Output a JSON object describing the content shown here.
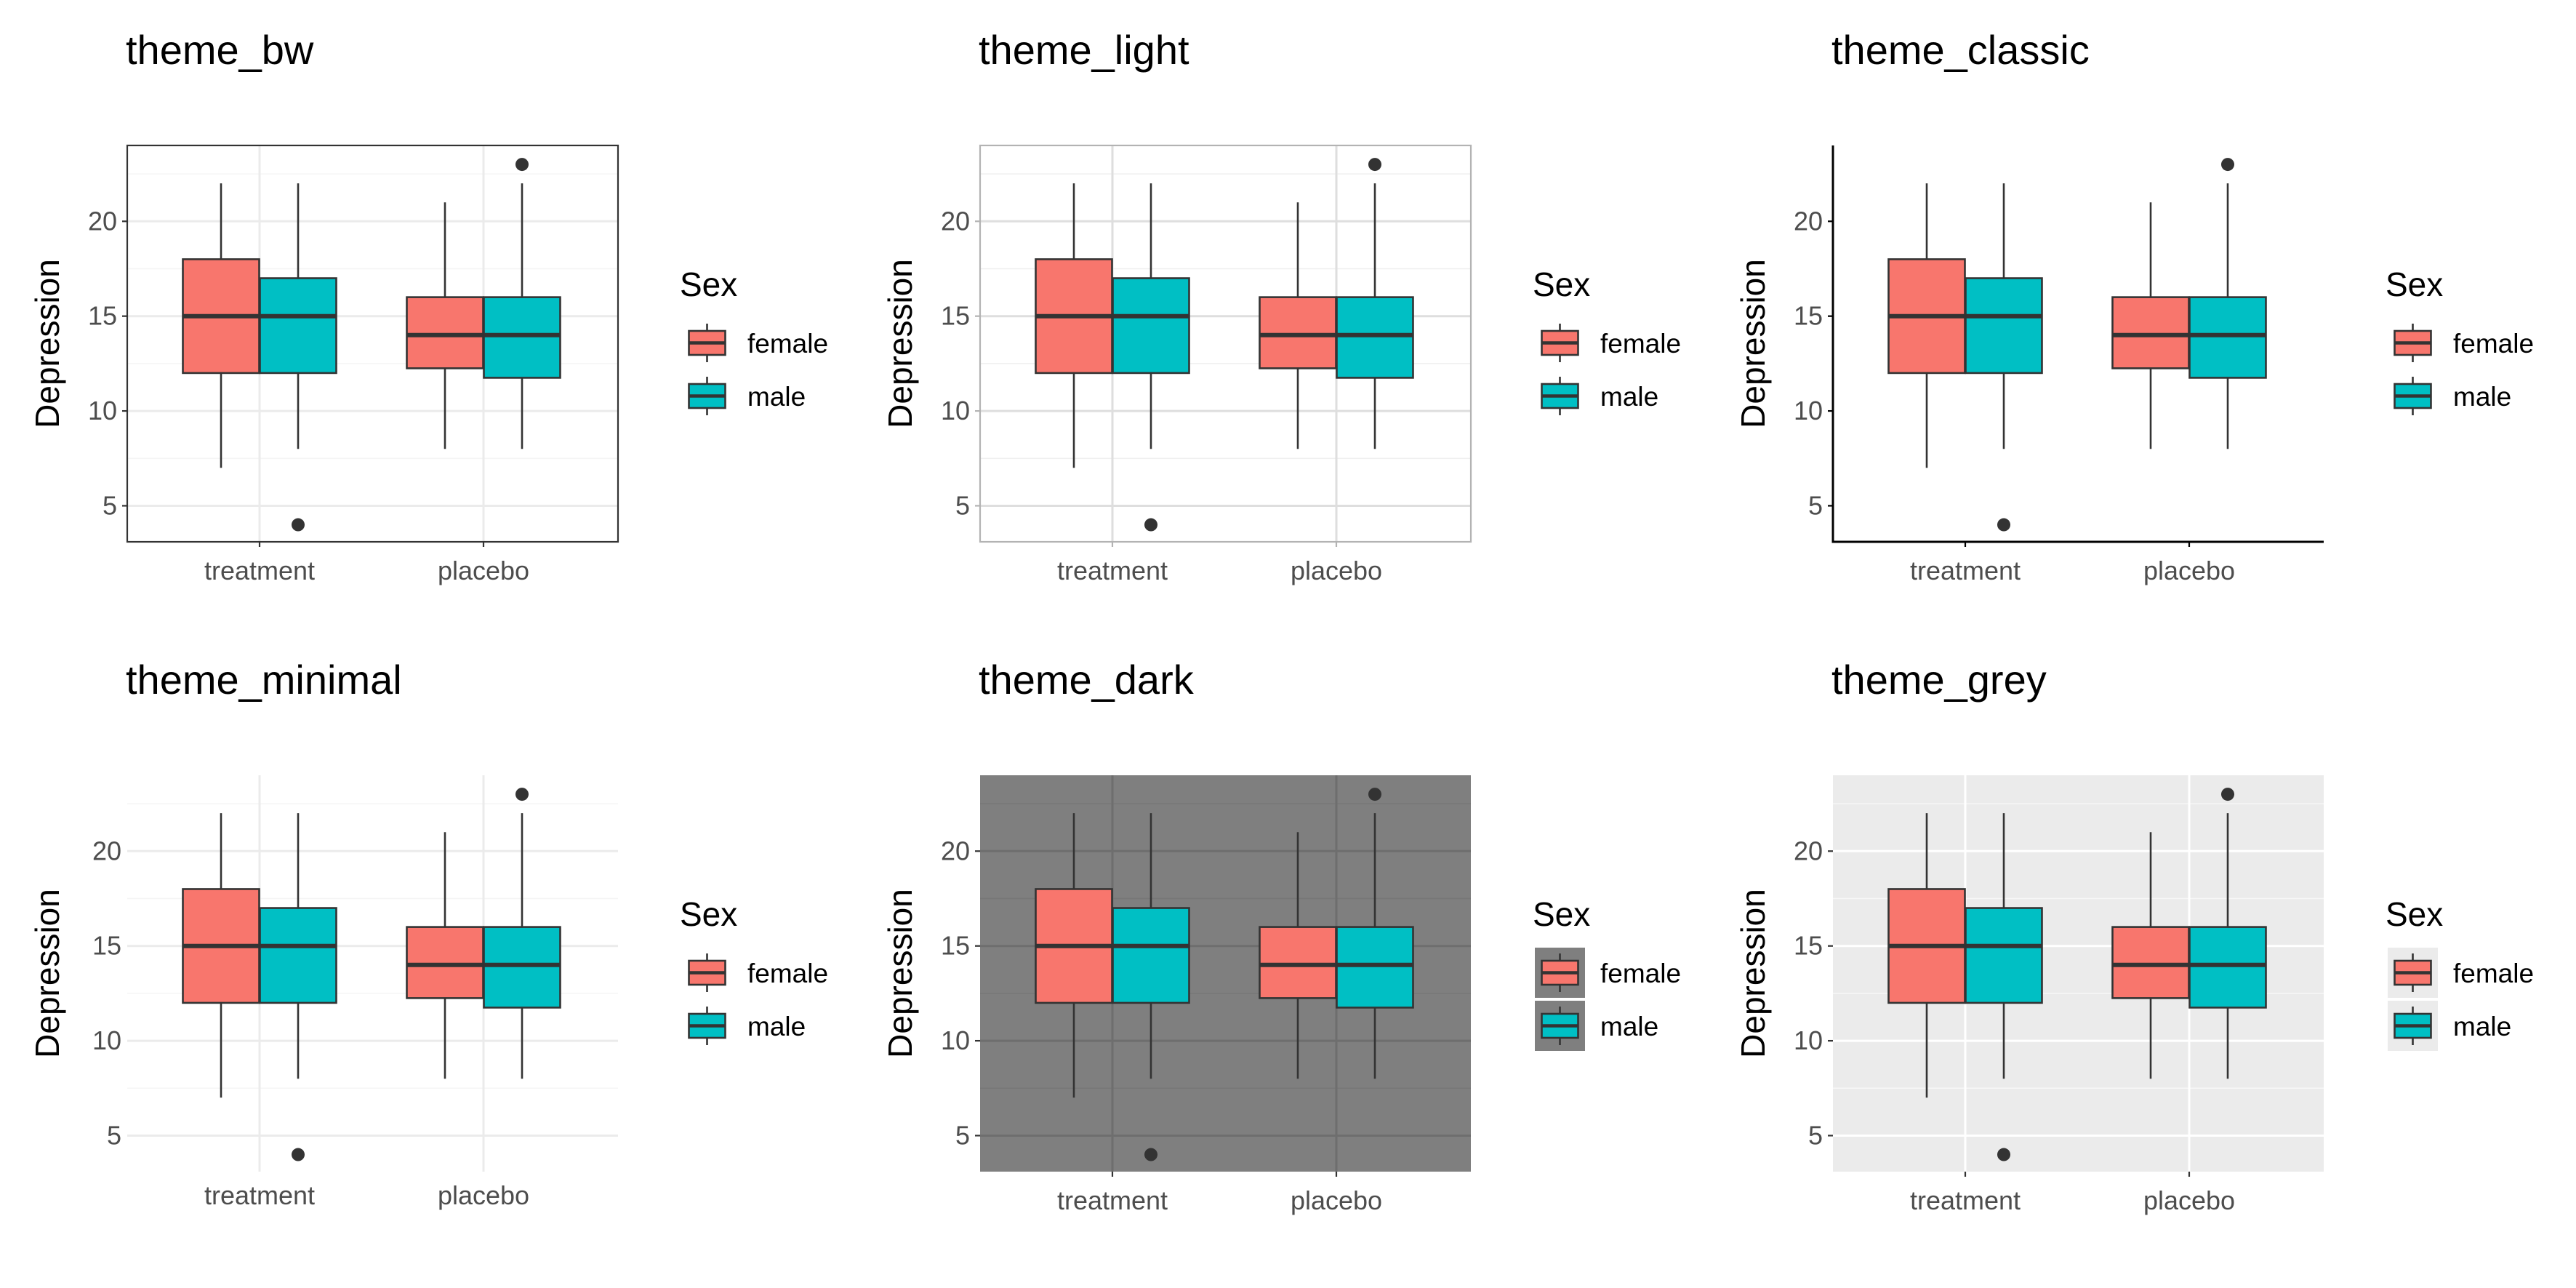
{
  "chart_data": [
    {
      "type": "box",
      "title": "theme_bw",
      "theme": "bw",
      "categories": [
        "treatment",
        "placebo"
      ],
      "ylabel": "Depression",
      "xlabel": "",
      "ylim": [
        3.1,
        24.0
      ],
      "yticks": [
        5,
        10,
        15,
        20
      ],
      "grid": "major and minor",
      "legend": {
        "title": "Sex",
        "position": "right",
        "entries": [
          "female",
          "male"
        ]
      },
      "series": [
        {
          "name": "female",
          "color": "#F8766D",
          "boxes": [
            {
              "min": 7,
              "q1": 12,
              "median": 15,
              "q3": 18,
              "max": 22,
              "outliers": []
            },
            {
              "min": 8,
              "q1": 12.25,
              "median": 14,
              "q3": 16,
              "max": 21,
              "outliers": []
            }
          ]
        },
        {
          "name": "male",
          "color": "#00BFC4",
          "boxes": [
            {
              "min": 8,
              "q1": 12,
              "median": 15,
              "q3": 17,
              "max": 22,
              "outliers": [
                4
              ]
            },
            {
              "min": 8,
              "q1": 11.75,
              "median": 14,
              "q3": 16,
              "max": 22,
              "outliers": [
                23
              ]
            }
          ]
        }
      ]
    },
    {
      "type": "box",
      "title": "theme_light",
      "theme": "light",
      "categories": [
        "treatment",
        "placebo"
      ],
      "ylabel": "Depression",
      "xlabel": "",
      "ylim": [
        3.1,
        24.0
      ],
      "yticks": [
        5,
        10,
        15,
        20
      ],
      "grid": "major and minor",
      "legend": {
        "title": "Sex",
        "position": "right",
        "entries": [
          "female",
          "male"
        ]
      },
      "series": [
        {
          "name": "female",
          "color": "#F8766D",
          "boxes": [
            {
              "min": 7,
              "q1": 12,
              "median": 15,
              "q3": 18,
              "max": 22,
              "outliers": []
            },
            {
              "min": 8,
              "q1": 12.25,
              "median": 14,
              "q3": 16,
              "max": 21,
              "outliers": []
            }
          ]
        },
        {
          "name": "male",
          "color": "#00BFC4",
          "boxes": [
            {
              "min": 8,
              "q1": 12,
              "median": 15,
              "q3": 17,
              "max": 22,
              "outliers": [
                4
              ]
            },
            {
              "min": 8,
              "q1": 11.75,
              "median": 14,
              "q3": 16,
              "max": 22,
              "outliers": [
                23
              ]
            }
          ]
        }
      ]
    },
    {
      "type": "box",
      "title": "theme_classic",
      "theme": "classic",
      "categories": [
        "treatment",
        "placebo"
      ],
      "ylabel": "Depression",
      "xlabel": "",
      "ylim": [
        3.1,
        24.0
      ],
      "yticks": [
        5,
        10,
        15,
        20
      ],
      "grid": "none",
      "legend": {
        "title": "Sex",
        "position": "right",
        "entries": [
          "female",
          "male"
        ]
      },
      "series": [
        {
          "name": "female",
          "color": "#F8766D",
          "boxes": [
            {
              "min": 7,
              "q1": 12,
              "median": 15,
              "q3": 18,
              "max": 22,
              "outliers": []
            },
            {
              "min": 8,
              "q1": 12.25,
              "median": 14,
              "q3": 16,
              "max": 21,
              "outliers": []
            }
          ]
        },
        {
          "name": "male",
          "color": "#00BFC4",
          "boxes": [
            {
              "min": 8,
              "q1": 12,
              "median": 15,
              "q3": 17,
              "max": 22,
              "outliers": [
                4
              ]
            },
            {
              "min": 8,
              "q1": 11.75,
              "median": 14,
              "q3": 16,
              "max": 22,
              "outliers": [
                23
              ]
            }
          ]
        }
      ]
    },
    {
      "type": "box",
      "title": "theme_minimal",
      "theme": "minimal",
      "categories": [
        "treatment",
        "placebo"
      ],
      "ylabel": "Depression",
      "xlabel": "",
      "ylim": [
        3.1,
        24.0
      ],
      "yticks": [
        5,
        10,
        15,
        20
      ],
      "grid": "major and minor",
      "legend": {
        "title": "Sex",
        "position": "right",
        "entries": [
          "female",
          "male"
        ]
      },
      "series": [
        {
          "name": "female",
          "color": "#F8766D",
          "boxes": [
            {
              "min": 7,
              "q1": 12,
              "median": 15,
              "q3": 18,
              "max": 22,
              "outliers": []
            },
            {
              "min": 8,
              "q1": 12.25,
              "median": 14,
              "q3": 16,
              "max": 21,
              "outliers": []
            }
          ]
        },
        {
          "name": "male",
          "color": "#00BFC4",
          "boxes": [
            {
              "min": 8,
              "q1": 12,
              "median": 15,
              "q3": 17,
              "max": 22,
              "outliers": [
                4
              ]
            },
            {
              "min": 8,
              "q1": 11.75,
              "median": 14,
              "q3": 16,
              "max": 22,
              "outliers": [
                23
              ]
            }
          ]
        }
      ]
    },
    {
      "type": "box",
      "title": "theme_dark",
      "theme": "dark",
      "categories": [
        "treatment",
        "placebo"
      ],
      "ylabel": "Depression",
      "xlabel": "",
      "ylim": [
        3.1,
        24.0
      ],
      "yticks": [
        5,
        10,
        15,
        20
      ],
      "grid": "major and minor",
      "legend": {
        "title": "Sex",
        "position": "right",
        "entries": [
          "female",
          "male"
        ]
      },
      "series": [
        {
          "name": "female",
          "color": "#F8766D",
          "boxes": [
            {
              "min": 7,
              "q1": 12,
              "median": 15,
              "q3": 18,
              "max": 22,
              "outliers": []
            },
            {
              "min": 8,
              "q1": 12.25,
              "median": 14,
              "q3": 16,
              "max": 21,
              "outliers": []
            }
          ]
        },
        {
          "name": "male",
          "color": "#00BFC4",
          "boxes": [
            {
              "min": 8,
              "q1": 12,
              "median": 15,
              "q3": 17,
              "max": 22,
              "outliers": [
                4
              ]
            },
            {
              "min": 8,
              "q1": 11.75,
              "median": 14,
              "q3": 16,
              "max": 22,
              "outliers": [
                23
              ]
            }
          ]
        }
      ]
    },
    {
      "type": "box",
      "title": "theme_grey",
      "theme": "grey",
      "categories": [
        "treatment",
        "placebo"
      ],
      "ylabel": "Depression",
      "xlabel": "",
      "ylim": [
        3.1,
        24.0
      ],
      "yticks": [
        5,
        10,
        15,
        20
      ],
      "grid": "major and minor",
      "legend": {
        "title": "Sex",
        "position": "right",
        "entries": [
          "female",
          "male"
        ]
      },
      "series": [
        {
          "name": "female",
          "color": "#F8766D",
          "boxes": [
            {
              "min": 7,
              "q1": 12,
              "median": 15,
              "q3": 18,
              "max": 22,
              "outliers": []
            },
            {
              "min": 8,
              "q1": 12.25,
              "median": 14,
              "q3": 16,
              "max": 21,
              "outliers": []
            }
          ]
        },
        {
          "name": "male",
          "color": "#00BFC4",
          "boxes": [
            {
              "min": 8,
              "q1": 12,
              "median": 15,
              "q3": 17,
              "max": 22,
              "outliers": [
                4
              ]
            },
            {
              "min": 8,
              "q1": 11.75,
              "median": 14,
              "q3": 16,
              "max": 22,
              "outliers": [
                23
              ]
            }
          ]
        }
      ]
    }
  ]
}
